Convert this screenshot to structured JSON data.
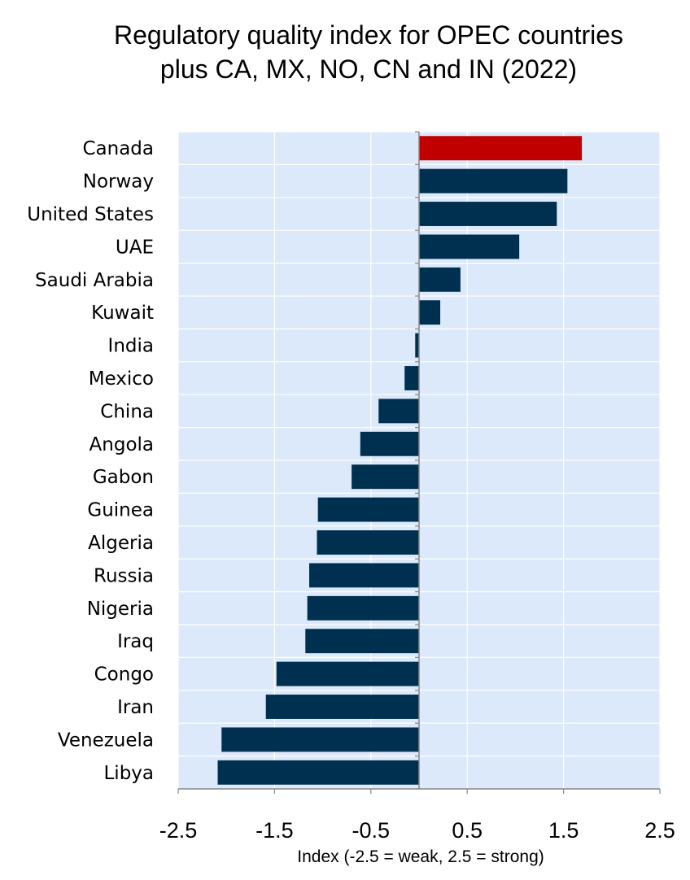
{
  "chart_data": {
    "type": "bar",
    "orientation": "horizontal",
    "title_line1": "Regulatory quality index for OPEC countries",
    "title_line2": "plus CA, MX, NO, CN and IN (2022)",
    "xlabel": "Index (-2.5 = weak, 2.5 = strong)",
    "ylabel": "",
    "xlim": [
      -2.5,
      2.5
    ],
    "xticks": [
      "-2.5",
      "-1.5",
      "-0.5",
      "0.5",
      "1.5",
      "2.5"
    ],
    "grid": true,
    "categories": [
      "Canada",
      "Norway",
      "United States",
      "UAE",
      "Saudi Arabia",
      "Kuwait",
      "India",
      "Mexico",
      "China",
      "Angola",
      "Gabon",
      "Guinea",
      "Algeria",
      "Russia",
      "Nigeria",
      "Iraq",
      "Congo",
      "Iran",
      "Venezuela",
      "Libya"
    ],
    "values": [
      1.69,
      1.54,
      1.43,
      1.04,
      0.43,
      0.22,
      -0.04,
      -0.15,
      -0.42,
      -0.61,
      -0.7,
      -1.05,
      -1.06,
      -1.14,
      -1.16,
      -1.18,
      -1.48,
      -1.59,
      -2.05,
      -2.09
    ],
    "highlight_category": "Canada",
    "colors": {
      "bar": "#00304f",
      "highlight": "#c00000",
      "plot_bg": "#dce9fa",
      "grid": "#ffffff",
      "axis": "#888888"
    }
  }
}
